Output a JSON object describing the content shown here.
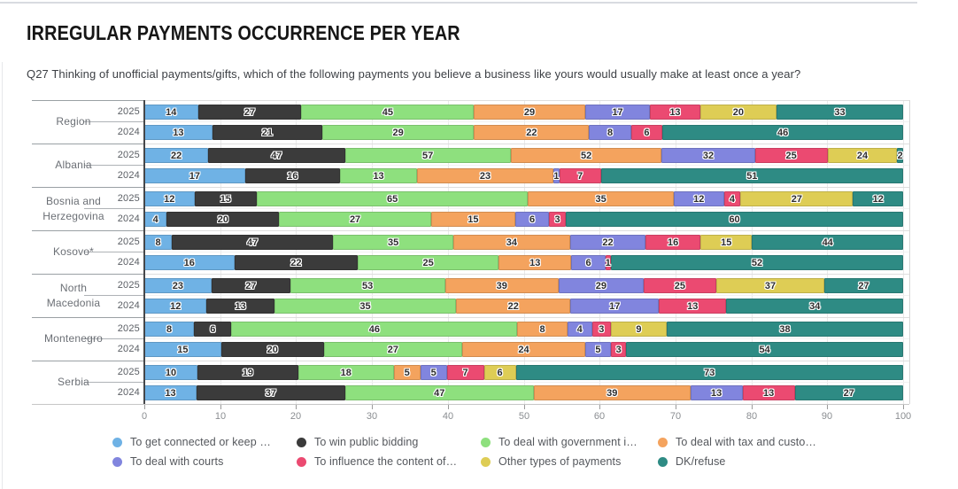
{
  "page": {
    "title": "IRREGULAR PAYMENTS OCCURRENCE PER YEAR",
    "subtitle": "Q27 Thinking of unofficial payments/gifts, which of the following payments you believe a business like yours would usually make at least once a year?"
  },
  "chart_data": {
    "type": "bar",
    "orientation": "horizontal",
    "stacked": true,
    "segments_normalized_to_row_total": true,
    "xlim": [
      0,
      100
    ],
    "x_ticks": [
      0,
      10,
      20,
      30,
      40,
      50,
      60,
      70,
      80,
      90,
      100
    ],
    "grid": true,
    "legend_position": "bottom",
    "series": [
      {
        "name": "To get connected or keep …",
        "color": "#6FB2E5"
      },
      {
        "name": "To win public bidding",
        "color": "#3B3B3B"
      },
      {
        "name": "To deal with government i…",
        "color": "#8EE07E"
      },
      {
        "name": "To deal with tax and custo…",
        "color": "#F4A35E"
      },
      {
        "name": "To deal with courts",
        "color": "#8185DE"
      },
      {
        "name": "To influence the content of…",
        "color": "#EB4A71"
      },
      {
        "name": "Other types of payments",
        "color": "#DECD55"
      },
      {
        "name": "DK/refuse",
        "color": "#2E8B84"
      }
    ],
    "groups": [
      {
        "label": "Region",
        "rows": [
          {
            "year": "2025",
            "values": [
              14,
              27,
              45,
              29,
              17,
              13,
              20,
              33
            ]
          },
          {
            "year": "2024",
            "values": [
              13,
              21,
              29,
              22,
              8,
              6,
              0,
              46
            ]
          }
        ]
      },
      {
        "label": "Albania",
        "rows": [
          {
            "year": "2025",
            "values": [
              22,
              47,
              57,
              52,
              32,
              25,
              24,
              2
            ]
          },
          {
            "year": "2024",
            "values": [
              17,
              16,
              13,
              23,
              1,
              7,
              0,
              51
            ]
          }
        ]
      },
      {
        "label": "Bosnia and Herzegovina",
        "rows": [
          {
            "year": "2025",
            "values": [
              12,
              15,
              65,
              35,
              12,
              4,
              27,
              12
            ]
          },
          {
            "year": "2024",
            "values": [
              4,
              20,
              27,
              15,
              6,
              3,
              0,
              60
            ]
          }
        ]
      },
      {
        "label": "Kosovo*",
        "rows": [
          {
            "year": "2025",
            "values": [
              8,
              47,
              35,
              34,
              22,
              16,
              15,
              44
            ]
          },
          {
            "year": "2024",
            "values": [
              16,
              22,
              25,
              13,
              6,
              1,
              0,
              52
            ]
          }
        ]
      },
      {
        "label": "North Macedonia",
        "rows": [
          {
            "year": "2025",
            "values": [
              23,
              27,
              53,
              39,
              29,
              25,
              37,
              27
            ]
          },
          {
            "year": "2024",
            "values": [
              12,
              13,
              35,
              22,
              17,
              13,
              0,
              34
            ]
          }
        ]
      },
      {
        "label": "Montenegro",
        "rows": [
          {
            "year": "2025",
            "values": [
              8,
              6,
              46,
              8,
              4,
              3,
              9,
              38
            ]
          },
          {
            "year": "2024",
            "values": [
              15,
              20,
              27,
              24,
              5,
              3,
              0,
              54
            ]
          }
        ]
      },
      {
        "label": "Serbia",
        "rows": [
          {
            "year": "2025",
            "values": [
              10,
              19,
              18,
              5,
              5,
              7,
              6,
              73
            ]
          },
          {
            "year": "2024",
            "values": [
              13,
              37,
              47,
              39,
              13,
              13,
              0,
              27
            ]
          }
        ]
      }
    ]
  }
}
